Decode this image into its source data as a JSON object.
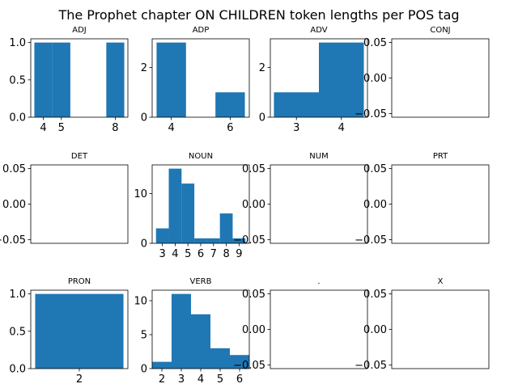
{
  "figure": {
    "title": "The Prophet chapter ON CHILDREN token lengths per POS tag",
    "bar_color": "#1f77b4"
  },
  "chart_data": [
    {
      "type": "bar",
      "title": "ADJ",
      "bins": [
        {
          "x0": 3.5,
          "x1": 4.5,
          "count": 1
        },
        {
          "x0": 4.5,
          "x1": 5.5,
          "count": 1
        },
        {
          "x0": 7.5,
          "x1": 8.5,
          "count": 1
        }
      ],
      "xlim": [
        3.3,
        8.7
      ],
      "ylim": [
        0,
        1.05
      ],
      "xticks": [
        4,
        5,
        8
      ],
      "yticks": [
        {
          "v": 0,
          "label": "0.0"
        },
        {
          "v": 0.5,
          "label": "0.5"
        },
        {
          "v": 1,
          "label": "1.0"
        }
      ]
    },
    {
      "type": "bar",
      "title": "ADP",
      "bins": [
        {
          "x0": 3.5,
          "x1": 4.5,
          "count": 3
        },
        {
          "x0": 5.5,
          "x1": 6.5,
          "count": 1
        }
      ],
      "xlim": [
        3.35,
        6.65
      ],
      "ylim": [
        0,
        3.15
      ],
      "xticks": [
        4,
        6
      ],
      "yticks": [
        {
          "v": 0,
          "label": "0"
        },
        {
          "v": 2,
          "label": "2"
        }
      ]
    },
    {
      "type": "bar",
      "title": "ADV",
      "bins": [
        {
          "x0": 2.5,
          "x1": 3.5,
          "count": 1
        },
        {
          "x0": 3.5,
          "x1": 4.5,
          "count": 3
        }
      ],
      "xlim": [
        2.42,
        4.58
      ],
      "ylim": [
        0,
        3.15
      ],
      "xticks": [
        3,
        4
      ],
      "yticks": [
        {
          "v": 0,
          "label": "0"
        },
        {
          "v": 2,
          "label": "2"
        }
      ]
    },
    {
      "type": "bar",
      "title": "CONJ",
      "bins": [],
      "xlim": [
        0,
        1
      ],
      "ylim": [
        -0.055,
        0.055
      ],
      "xticks": [],
      "yticks": [
        {
          "v": -0.05,
          "label": "−0.05"
        },
        {
          "v": 0,
          "label": "0.00"
        },
        {
          "v": 0.05,
          "label": "0.05"
        }
      ]
    },
    {
      "type": "bar",
      "title": "DET",
      "bins": [],
      "xlim": [
        0,
        1
      ],
      "ylim": [
        -0.055,
        0.055
      ],
      "xticks": [],
      "yticks": [
        {
          "v": -0.05,
          "label": "−0.05"
        },
        {
          "v": 0,
          "label": "0.00"
        },
        {
          "v": 0.05,
          "label": "0.05"
        }
      ]
    },
    {
      "type": "bar",
      "title": "NOUN",
      "bins": [
        {
          "x0": 2.5,
          "x1": 3.5,
          "count": 3
        },
        {
          "x0": 3.5,
          "x1": 4.5,
          "count": 15
        },
        {
          "x0": 4.5,
          "x1": 5.5,
          "count": 12
        },
        {
          "x0": 5.5,
          "x1": 6.5,
          "count": 1
        },
        {
          "x0": 6.5,
          "x1": 7.5,
          "count": 1
        },
        {
          "x0": 7.5,
          "x1": 8.5,
          "count": 6
        },
        {
          "x0": 8.5,
          "x1": 9.5,
          "count": 1
        }
      ],
      "xlim": [
        2.2,
        9.8
      ],
      "ylim": [
        0,
        15.75
      ],
      "xticks": [
        3,
        4,
        5,
        6,
        7,
        8,
        9
      ],
      "yticks": [
        {
          "v": 0,
          "label": "0"
        },
        {
          "v": 10,
          "label": "10"
        }
      ]
    },
    {
      "type": "bar",
      "title": "NUM",
      "bins": [],
      "xlim": [
        0,
        1
      ],
      "ylim": [
        -0.055,
        0.055
      ],
      "xticks": [],
      "yticks": [
        {
          "v": -0.05,
          "label": "−0.05"
        },
        {
          "v": 0,
          "label": "0.00"
        },
        {
          "v": 0.05,
          "label": "0.05"
        }
      ]
    },
    {
      "type": "bar",
      "title": "PRT",
      "bins": [],
      "xlim": [
        0,
        1
      ],
      "ylim": [
        -0.055,
        0.055
      ],
      "xticks": [],
      "yticks": [
        {
          "v": -0.05,
          "label": "−0.05"
        },
        {
          "v": 0,
          "label": "0.00"
        },
        {
          "v": 0.05,
          "label": "0.05"
        }
      ]
    },
    {
      "type": "bar",
      "title": "PRON",
      "bins": [
        {
          "x0": 1.5,
          "x1": 2.5,
          "count": 1
        }
      ],
      "xlim": [
        1.45,
        2.55
      ],
      "ylim": [
        0,
        1.05
      ],
      "xticks": [
        2
      ],
      "yticks": [
        {
          "v": 0,
          "label": "0.0"
        },
        {
          "v": 0.5,
          "label": "0.5"
        },
        {
          "v": 1,
          "label": "1.0"
        }
      ]
    },
    {
      "type": "bar",
      "title": "VERB",
      "bins": [
        {
          "x0": 1.5,
          "x1": 2.5,
          "count": 1
        },
        {
          "x0": 2.5,
          "x1": 3.5,
          "count": 11
        },
        {
          "x0": 3.5,
          "x1": 4.5,
          "count": 8
        },
        {
          "x0": 4.5,
          "x1": 5.5,
          "count": 3
        },
        {
          "x0": 5.5,
          "x1": 6.5,
          "count": 2
        }
      ],
      "xlim": [
        1.5,
        6.5
      ],
      "ylim": [
        0,
        11.55
      ],
      "xticks": [
        2,
        3,
        4,
        5,
        6
      ],
      "yticks": [
        {
          "v": 0,
          "label": "0"
        },
        {
          "v": 5,
          "label": "5"
        },
        {
          "v": 10,
          "label": "10"
        }
      ]
    },
    {
      "type": "bar",
      "title": ".",
      "bins": [],
      "xlim": [
        0,
        1
      ],
      "ylim": [
        -0.055,
        0.055
      ],
      "xticks": [],
      "yticks": [
        {
          "v": -0.05,
          "label": "−0.05"
        },
        {
          "v": 0,
          "label": "0.00"
        },
        {
          "v": 0.05,
          "label": "0.05"
        }
      ]
    },
    {
      "type": "bar",
      "title": "X",
      "bins": [],
      "xlim": [
        0,
        1
      ],
      "ylim": [
        -0.055,
        0.055
      ],
      "xticks": [],
      "yticks": [
        {
          "v": -0.05,
          "label": "−0.05"
        },
        {
          "v": 0,
          "label": "0.00"
        },
        {
          "v": 0.05,
          "label": "0.05"
        }
      ]
    }
  ]
}
